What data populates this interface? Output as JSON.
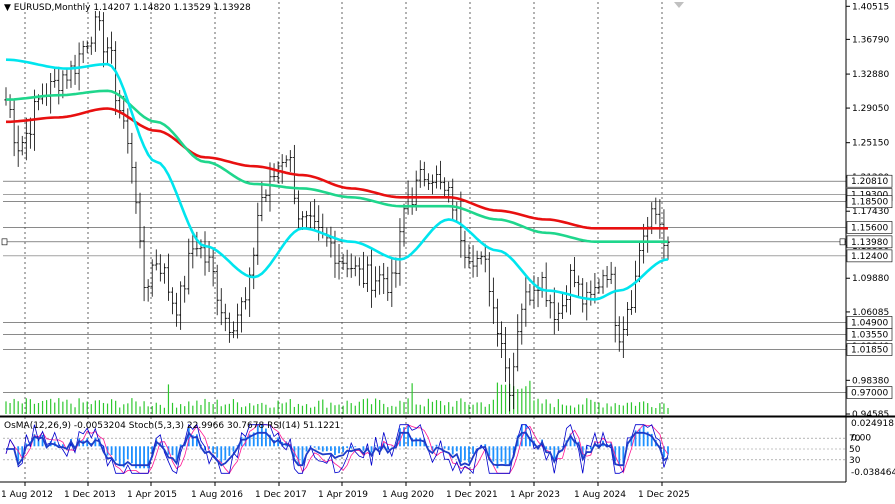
{
  "header": {
    "symbol": "EURUSD,Monthly",
    "ohlc": "1.14207 1.14820 1.13529 1.13928"
  },
  "indicator_header": {
    "osma": "OsMA(12,26,9) -0.0053204",
    "stoch": "Stoch(5,3,3) 22.9966 30.7678",
    "rsi": "RSI(14) 51.1221"
  },
  "price_axis": {
    "ticks": [
      "1.40515",
      "1.36790",
      "1.32880",
      "1.29050",
      "1.25150",
      "1.21280",
      "1.17430",
      "1.13530",
      "1.09880",
      "1.06085",
      "1.02240",
      "0.98380",
      "0.94585"
    ],
    "level_tags": [
      {
        "text": "1.20810",
        "price": 1.2081
      },
      {
        "text": "1.19300",
        "price": 1.193
      },
      {
        "text": "1.18500",
        "price": 1.185
      },
      {
        "text": "1.15600",
        "price": 1.156
      },
      {
        "text": "1.13980",
        "price": 1.1398
      },
      {
        "text": "1.12400",
        "price": 1.124
      },
      {
        "text": "1.04900",
        "price": 1.049
      },
      {
        "text": "1.03550",
        "price": 1.0355
      },
      {
        "text": "1.01850",
        "price": 1.0185
      },
      {
        "text": "0.97000",
        "price": 0.97
      }
    ]
  },
  "indicator_axis": {
    "ticks": [
      "0.0249181",
      "0.00",
      "-0.0384648"
    ],
    "levels": [
      "70",
      "50",
      "30"
    ]
  },
  "time_axis": [
    "1 Aug 2012",
    "1 Dec 2013",
    "1 Apr 2015",
    "1 Aug 2016",
    "1 Dec 2017",
    "1 Apr 2019",
    "1 Aug 2020",
    "1 Dec 2021",
    "1 Apr 2023",
    "1 Aug 2024",
    "1 Dec 2025"
  ],
  "colors": {
    "ma_fast": "#00e5ee",
    "ma_mid": "#1fd68c",
    "ma_slow": "#e81010",
    "volume": "#2ec72e",
    "osma": "#1e90ff",
    "stoch_main": "#0000cd",
    "stoch_signal": "#ff1493",
    "rsi": "#1e3cc8",
    "level_tag_bg": "#ffffff",
    "grid": "#000000"
  },
  "chart_data": {
    "type": "candlestick",
    "title": "EURUSD,Monthly",
    "timeframe": "Monthly",
    "ylim": [
      0.94585,
      1.41
    ],
    "last_ohlc": {
      "open": 1.14207,
      "high": 1.1482,
      "low": 1.13529,
      "close": 1.13928
    },
    "x_range": [
      "2012-05",
      "2025-12"
    ],
    "anchors": [
      [
        "2012-05",
        1.3
      ],
      [
        "2012-08",
        1.25
      ],
      [
        "2013-03",
        1.31
      ],
      [
        "2013-08",
        1.33
      ],
      [
        "2014-03",
        1.38
      ],
      [
        "2014-06",
        1.36
      ],
      [
        "2014-09",
        1.29
      ],
      [
        "2014-12",
        1.23
      ],
      [
        "2015-03",
        1.09
      ],
      [
        "2015-06",
        1.12
      ],
      [
        "2015-11",
        1.07
      ],
      [
        "2016-04",
        1.14
      ],
      [
        "2016-06",
        1.12
      ],
      [
        "2016-12",
        1.05
      ],
      [
        "2017-04",
        1.07
      ],
      [
        "2017-08",
        1.19
      ],
      [
        "2018-02",
        1.24
      ],
      [
        "2018-06",
        1.16
      ],
      [
        "2018-12",
        1.14
      ],
      [
        "2019-04",
        1.12
      ],
      [
        "2019-09",
        1.1
      ],
      [
        "2020-02",
        1.1
      ],
      [
        "2020-04",
        1.09
      ],
      [
        "2020-08",
        1.19
      ],
      [
        "2021-01",
        1.22
      ],
      [
        "2021-06",
        1.19
      ],
      [
        "2021-11",
        1.13
      ],
      [
        "2022-03",
        1.11
      ],
      [
        "2022-06",
        1.05
      ],
      [
        "2022-09",
        0.98
      ],
      [
        "2022-12",
        1.07
      ],
      [
        "2023-04",
        1.1
      ],
      [
        "2023-09",
        1.06
      ],
      [
        "2023-12",
        1.1
      ],
      [
        "2024-04",
        1.07
      ],
      [
        "2024-09",
        1.11
      ],
      [
        "2024-12",
        1.04
      ],
      [
        "2025-03",
        1.08
      ],
      [
        "2025-06",
        1.15
      ],
      [
        "2025-09",
        1.17
      ],
      [
        "2025-12",
        1.139
      ]
    ],
    "ma_fast_anchors": [
      [
        "2012-05",
        1.345
      ],
      [
        "2013-08",
        1.335
      ],
      [
        "2014-06",
        1.34
      ],
      [
        "2015-06",
        1.23
      ],
      [
        "2016-06",
        1.135
      ],
      [
        "2017-06",
        1.1
      ],
      [
        "2018-06",
        1.155
      ],
      [
        "2019-06",
        1.14
      ],
      [
        "2020-06",
        1.12
      ],
      [
        "2021-06",
        1.165
      ],
      [
        "2022-06",
        1.13
      ],
      [
        "2023-06",
        1.085
      ],
      [
        "2024-06",
        1.075
      ],
      [
        "2024-12",
        1.085
      ],
      [
        "2025-12",
        1.12
      ]
    ],
    "ma_mid_anchors": [
      [
        "2012-05",
        1.3
      ],
      [
        "2013-06",
        1.305
      ],
      [
        "2014-06",
        1.31
      ],
      [
        "2015-06",
        1.275
      ],
      [
        "2016-06",
        1.23
      ],
      [
        "2017-06",
        1.205
      ],
      [
        "2018-06",
        1.2
      ],
      [
        "2019-06",
        1.19
      ],
      [
        "2020-06",
        1.18
      ],
      [
        "2021-06",
        1.18
      ],
      [
        "2022-06",
        1.165
      ],
      [
        "2023-06",
        1.15
      ],
      [
        "2024-06",
        1.14
      ],
      [
        "2025-12",
        1.14
      ]
    ],
    "ma_slow_anchors": [
      [
        "2012-05",
        1.275
      ],
      [
        "2013-06",
        1.28
      ],
      [
        "2014-06",
        1.29
      ],
      [
        "2015-06",
        1.265
      ],
      [
        "2016-06",
        1.235
      ],
      [
        "2017-06",
        1.225
      ],
      [
        "2018-06",
        1.215
      ],
      [
        "2019-06",
        1.2
      ],
      [
        "2020-06",
        1.19
      ],
      [
        "2021-06",
        1.19
      ],
      [
        "2022-06",
        1.175
      ],
      [
        "2023-06",
        1.165
      ],
      [
        "2024-06",
        1.155
      ],
      [
        "2025-12",
        1.155
      ]
    ]
  }
}
